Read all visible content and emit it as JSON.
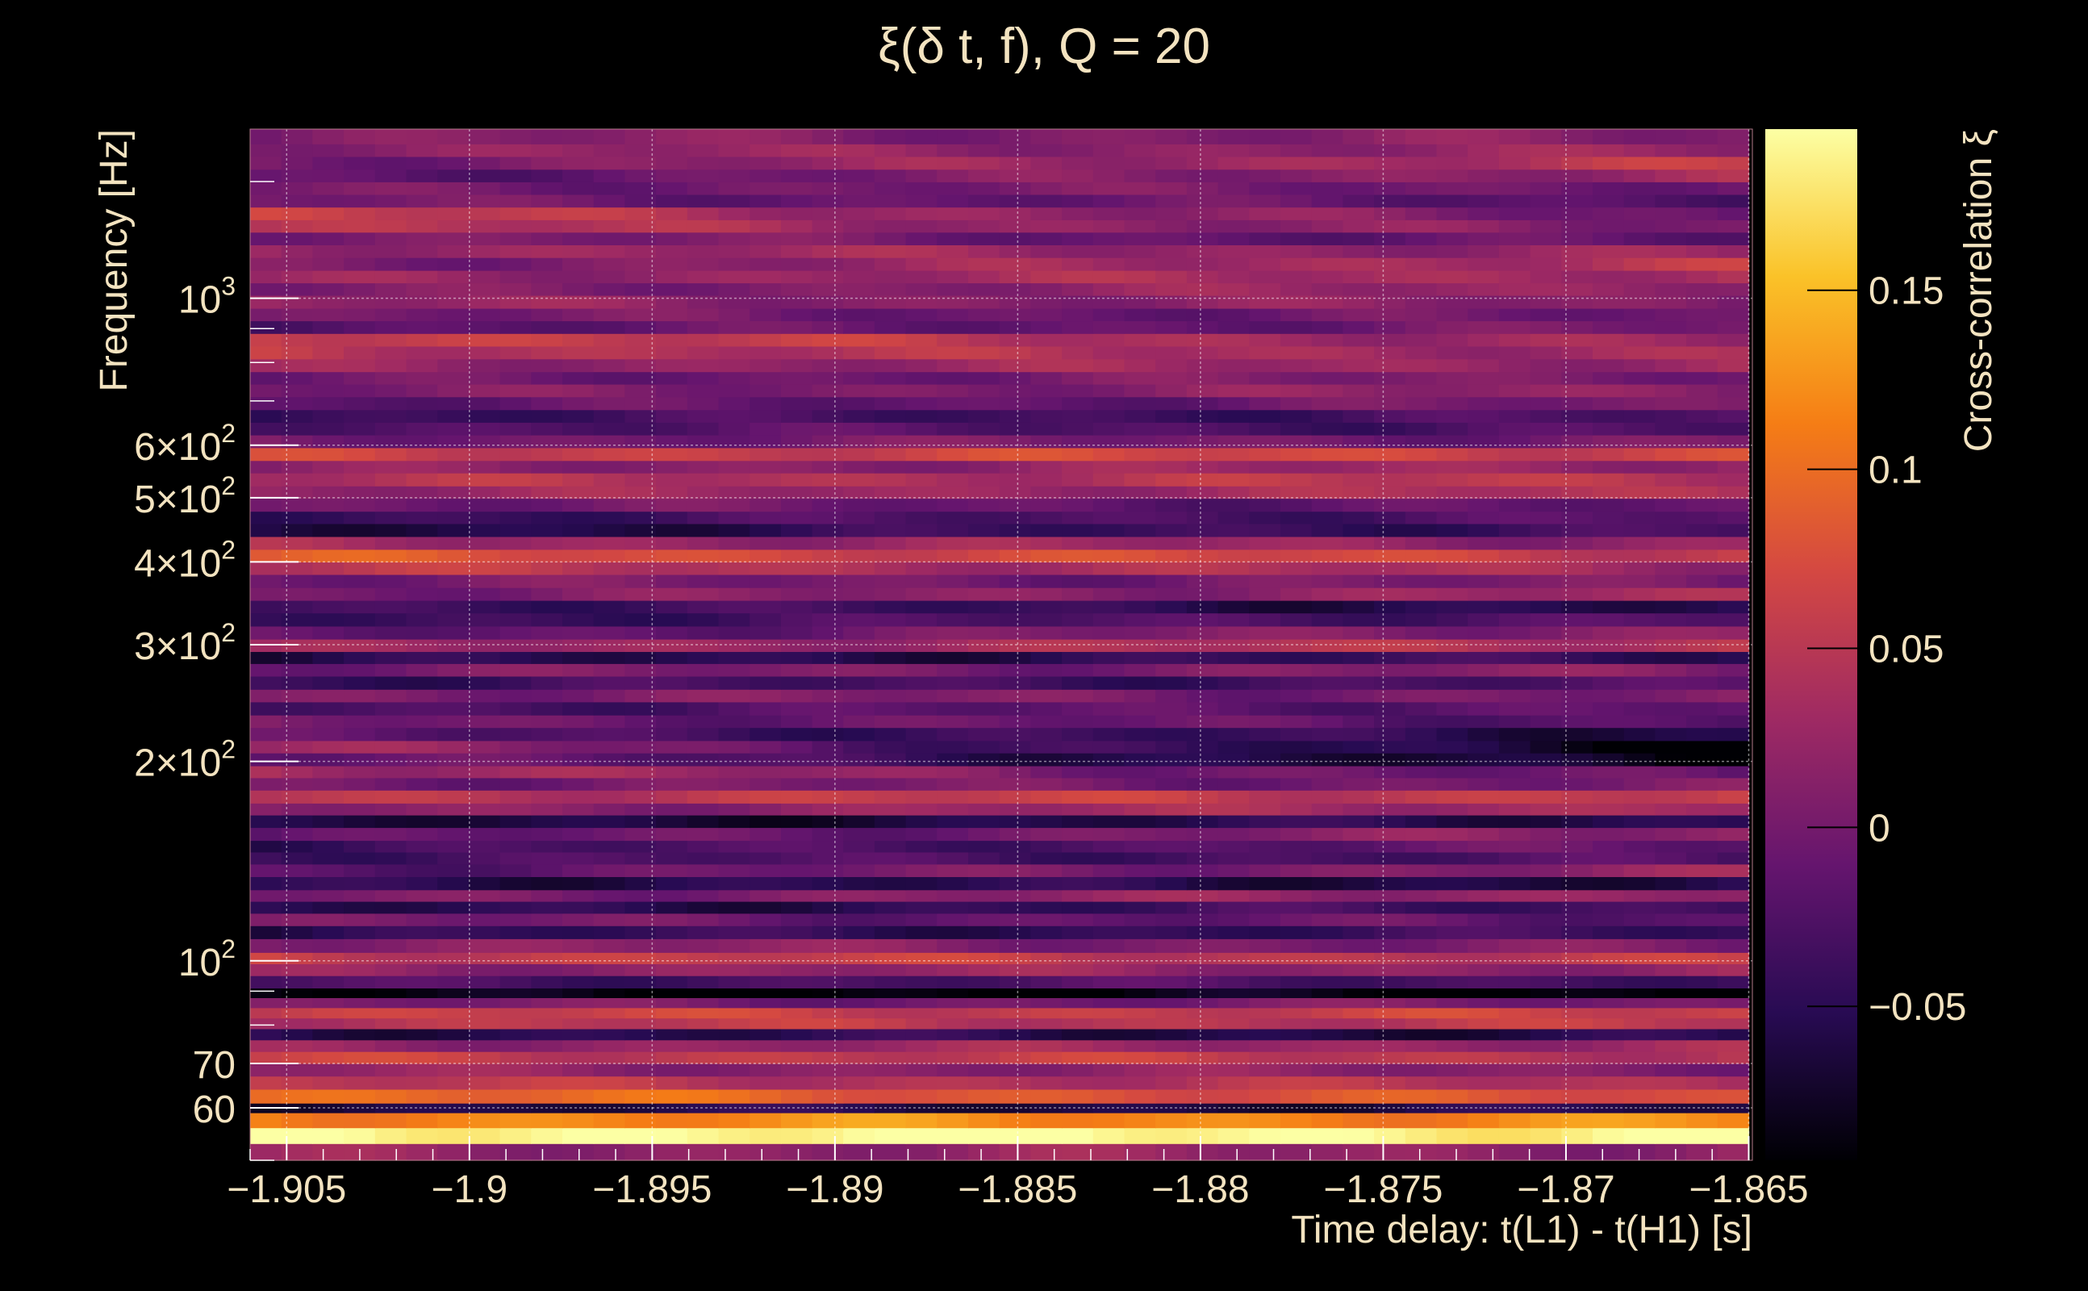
{
  "chart_data": {
    "type": "heatmap",
    "title": "ξ(δ t, f), Q = 20",
    "xlabel": "Time delay: t(L1) - t(H1) [s]",
    "ylabel": "Frequency [Hz]",
    "colorbar_label": "Cross-correlation ξ",
    "x_scale": "linear",
    "y_scale": "log",
    "xlim": [
      -1.906,
      -1.8649
    ],
    "ylim": [
      50,
      1800
    ],
    "x_ticks": [
      {
        "value": -1.905,
        "label": "−1.905"
      },
      {
        "value": -1.9,
        "label": "−1.9"
      },
      {
        "value": -1.895,
        "label": "−1.895"
      },
      {
        "value": -1.89,
        "label": "−1.89"
      },
      {
        "value": -1.885,
        "label": "−1.885"
      },
      {
        "value": -1.88,
        "label": "−1.88"
      },
      {
        "value": -1.875,
        "label": "−1.875"
      },
      {
        "value": -1.87,
        "label": "−1.87"
      },
      {
        "value": -1.865,
        "label": "−1.865"
      }
    ],
    "y_ticks": [
      {
        "value": 60,
        "label": "60",
        "base": "60",
        "exp": ""
      },
      {
        "value": 70,
        "label": "70",
        "base": "70",
        "exp": ""
      },
      {
        "value": 100,
        "label": "10^2",
        "base": "10",
        "exp": "2"
      },
      {
        "value": 200,
        "label": "2×10^2",
        "base": "2×10",
        "exp": "2"
      },
      {
        "value": 300,
        "label": "3×10^2",
        "base": "3×10",
        "exp": "2"
      },
      {
        "value": 400,
        "label": "4×10^2",
        "base": "4×10",
        "exp": "2"
      },
      {
        "value": 500,
        "label": "5×10^2",
        "base": "5×10",
        "exp": "2"
      },
      {
        "value": 600,
        "label": "6×10^2",
        "base": "6×10",
        "exp": "2"
      },
      {
        "value": 1000,
        "label": "10^3",
        "base": "10",
        "exp": "3"
      }
    ],
    "colorbar": {
      "range": [
        -0.093,
        0.195
      ],
      "ticks": [
        {
          "value": -0.05,
          "label": "−0.05"
        },
        {
          "value": 0,
          "label": "0"
        },
        {
          "value": 0.05,
          "label": "0.05"
        },
        {
          "value": 0.1,
          "label": "0.1"
        },
        {
          "value": 0.15,
          "label": "0.15"
        }
      ],
      "colormap": [
        "#000004",
        "#280b53",
        "#65156e",
        "#9f2a63",
        "#d44842",
        "#f57d15",
        "#fac228",
        "#fcffa4"
      ]
    },
    "grid": true,
    "t_bins": [
      -1.906,
      -1.865
    ],
    "freq_bands": [
      {
        "f": [
          50,
          53
        ],
        "xi": [
          0.02,
          0.02
        ]
      },
      {
        "f": [
          53,
          56
        ],
        "xi": [
          0.195,
          0.19
        ]
      },
      {
        "f": [
          56,
          59
        ],
        "xi": [
          0.12,
          0.12
        ]
      },
      {
        "f": [
          59,
          61
        ],
        "xi": [
          -0.06,
          -0.06
        ]
      },
      {
        "f": [
          61,
          64
        ],
        "xi": [
          0.1,
          0.07
        ]
      },
      {
        "f": [
          64,
          67
        ],
        "xi": [
          0.05,
          0.04
        ]
      },
      {
        "f": [
          67,
          70
        ],
        "xi": [
          0.02,
          0.01
        ]
      },
      {
        "f": [
          70,
          73
        ],
        "xi": [
          0.06,
          0.05
        ]
      },
      {
        "f": [
          73,
          76
        ],
        "xi": [
          0.02,
          0.03
        ]
      },
      {
        "f": [
          76,
          79
        ],
        "xi": [
          -0.05,
          -0.06
        ]
      },
      {
        "f": [
          79,
          82
        ],
        "xi": [
          0.05,
          0.05
        ]
      },
      {
        "f": [
          82,
          85
        ],
        "xi": [
          0.06,
          0.06
        ]
      },
      {
        "f": [
          85,
          88
        ],
        "xi": [
          0.0,
          0.0
        ]
      },
      {
        "f": [
          88,
          91
        ],
        "xi": [
          -0.09,
          -0.09
        ]
      },
      {
        "f": [
          91,
          95
        ],
        "xi": [
          -0.03,
          -0.03
        ]
      },
      {
        "f": [
          95,
          99
        ],
        "xi": [
          0.02,
          0.02
        ]
      },
      {
        "f": [
          99,
          103
        ],
        "xi": [
          0.06,
          0.05
        ]
      },
      {
        "f": [
          103,
          108
        ],
        "xi": [
          0.02,
          0.0
        ]
      },
      {
        "f": [
          108,
          113
        ],
        "xi": [
          -0.05,
          -0.04
        ]
      },
      {
        "f": [
          113,
          118
        ],
        "xi": [
          0.0,
          -0.02
        ]
      },
      {
        "f": [
          118,
          123
        ],
        "xi": [
          -0.06,
          -0.03
        ]
      },
      {
        "f": [
          123,
          128
        ],
        "xi": [
          0.0,
          0.03
        ]
      },
      {
        "f": [
          128,
          134
        ],
        "xi": [
          -0.05,
          -0.06
        ]
      },
      {
        "f": [
          134,
          140
        ],
        "xi": [
          -0.02,
          0.02
        ]
      },
      {
        "f": [
          140,
          146
        ],
        "xi": [
          -0.03,
          -0.03
        ]
      },
      {
        "f": [
          146,
          152
        ],
        "xi": [
          -0.04,
          -0.01
        ]
      },
      {
        "f": [
          152,
          159
        ],
        "xi": [
          -0.02,
          0.02
        ]
      },
      {
        "f": [
          159,
          166
        ],
        "xi": [
          -0.07,
          -0.05
        ]
      },
      {
        "f": [
          166,
          173
        ],
        "xi": [
          0.01,
          0.04
        ]
      },
      {
        "f": [
          173,
          181
        ],
        "xi": [
          0.05,
          0.06
        ]
      },
      {
        "f": [
          181,
          189
        ],
        "xi": [
          0.0,
          0.0
        ]
      },
      {
        "f": [
          189,
          197
        ],
        "xi": [
          0.04,
          -0.02
        ]
      },
      {
        "f": [
          197,
          206
        ],
        "xi": [
          0.0,
          -0.09
        ]
      },
      {
        "f": [
          206,
          215
        ],
        "xi": [
          0.03,
          -0.09
        ]
      },
      {
        "f": [
          215,
          225
        ],
        "xi": [
          -0.02,
          -0.06
        ]
      },
      {
        "f": [
          225,
          235
        ],
        "xi": [
          0.0,
          -0.02
        ]
      },
      {
        "f": [
          235,
          246
        ],
        "xi": [
          -0.03,
          -0.01
        ]
      },
      {
        "f": [
          246,
          257
        ],
        "xi": [
          0.01,
          0.0
        ]
      },
      {
        "f": [
          257,
          269
        ],
        "xi": [
          -0.04,
          -0.03
        ]
      },
      {
        "f": [
          269,
          281
        ],
        "xi": [
          0.0,
          0.01
        ]
      },
      {
        "f": [
          281,
          293
        ],
        "xi": [
          -0.06,
          -0.04
        ]
      },
      {
        "f": [
          293,
          306
        ],
        "xi": [
          0.02,
          0.05
        ]
      },
      {
        "f": [
          306,
          320
        ],
        "xi": [
          -0.02,
          0.02
        ]
      },
      {
        "f": [
          320,
          335
        ],
        "xi": [
          -0.04,
          -0.02
        ]
      },
      {
        "f": [
          335,
          350
        ],
        "xi": [
          -0.03,
          -0.06
        ]
      },
      {
        "f": [
          350,
          366
        ],
        "xi": [
          0.0,
          0.03
        ]
      },
      {
        "f": [
          366,
          383
        ],
        "xi": [
          0.0,
          0.0
        ]
      },
      {
        "f": [
          383,
          400
        ],
        "xi": [
          0.05,
          0.03
        ]
      },
      {
        "f": [
          400,
          418
        ],
        "xi": [
          0.08,
          0.06
        ]
      },
      {
        "f": [
          418,
          437
        ],
        "xi": [
          0.03,
          0.02
        ]
      },
      {
        "f": [
          437,
          457
        ],
        "xi": [
          -0.06,
          -0.03
        ]
      },
      {
        "f": [
          457,
          477
        ],
        "xi": [
          -0.04,
          -0.02
        ]
      },
      {
        "f": [
          477,
          499
        ],
        "xi": [
          0.0,
          -0.02
        ]
      },
      {
        "f": [
          499,
          521
        ],
        "xi": [
          0.02,
          0.04
        ]
      },
      {
        "f": [
          521,
          545
        ],
        "xi": [
          0.04,
          0.05
        ]
      },
      {
        "f": [
          545,
          569
        ],
        "xi": [
          0.01,
          0.03
        ]
      },
      {
        "f": [
          569,
          595
        ],
        "xi": [
          0.06,
          0.07
        ]
      },
      {
        "f": [
          595,
          622
        ],
        "xi": [
          0.0,
          0.0
        ]
      },
      {
        "f": [
          622,
          650
        ],
        "xi": [
          -0.02,
          -0.03
        ]
      },
      {
        "f": [
          650,
          679
        ],
        "xi": [
          -0.04,
          -0.03
        ]
      },
      {
        "f": [
          679,
          710
        ],
        "xi": [
          -0.02,
          0.0
        ]
      },
      {
        "f": [
          710,
          742
        ],
        "xi": [
          0.0,
          0.02
        ]
      },
      {
        "f": [
          742,
          775
        ],
        "xi": [
          -0.01,
          0.01
        ]
      },
      {
        "f": [
          775,
          810
        ],
        "xi": [
          0.02,
          0.03
        ]
      },
      {
        "f": [
          810,
          847
        ],
        "xi": [
          0.05,
          0.03
        ]
      },
      {
        "f": [
          847,
          885
        ],
        "xi": [
          0.07,
          0.02
        ]
      },
      {
        "f": [
          885,
          925
        ],
        "xi": [
          -0.02,
          0.0
        ]
      },
      {
        "f": [
          925,
          966
        ],
        "xi": [
          0.0,
          -0.01
        ]
      },
      {
        "f": [
          966,
          1010
        ],
        "xi": [
          0.02,
          0.01
        ]
      },
      {
        "f": [
          1010,
          1055
        ],
        "xi": [
          0.0,
          0.03
        ]
      },
      {
        "f": [
          1055,
          1102
        ],
        "xi": [
          0.02,
          0.04
        ]
      },
      {
        "f": [
          1102,
          1152
        ],
        "xi": [
          0.0,
          0.05
        ]
      },
      {
        "f": [
          1152,
          1204
        ],
        "xi": [
          0.03,
          0.02
        ]
      },
      {
        "f": [
          1204,
          1258
        ],
        "xi": [
          0.01,
          -0.02
        ]
      },
      {
        "f": [
          1258,
          1314
        ],
        "xi": [
          0.05,
          0.0
        ]
      },
      {
        "f": [
          1314,
          1373
        ],
        "xi": [
          0.06,
          -0.01
        ]
      },
      {
        "f": [
          1373,
          1435
        ],
        "xi": [
          0.0,
          -0.02
        ]
      },
      {
        "f": [
          1435,
          1499
        ],
        "xi": [
          0.0,
          0.0
        ]
      },
      {
        "f": [
          1499,
          1566
        ],
        "xi": [
          -0.02,
          0.03
        ]
      },
      {
        "f": [
          1566,
          1637
        ],
        "xi": [
          0.0,
          0.05
        ]
      },
      {
        "f": [
          1637,
          1710
        ],
        "xi": [
          0.02,
          0.02
        ]
      },
      {
        "f": [
          1710,
          1800
        ],
        "xi": [
          0.01,
          0.01
        ]
      }
    ]
  }
}
